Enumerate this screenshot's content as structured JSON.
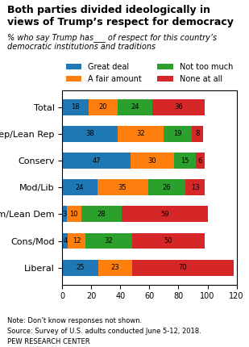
{
  "chart_data": {
    "type": "bar",
    "orientation": "horizontal",
    "stacked": true,
    "data_labels": true,
    "title": "Both parties divided ideologically in\nviews of Trump’s respect for democracy",
    "subtitle": "% who say Trump has___ of respect for this country’s\ndemocratic institutions and traditions",
    "categories": [
      "Total",
      "Rep/Lean Rep",
      "Conserv",
      "Mod/Lib",
      "Dem/Lean Dem",
      "Cons/Mod",
      "Liberal"
    ],
    "series": [
      {
        "name": "Great deal",
        "values": [
          18,
          38,
          47,
          24,
          3,
          4,
          25
        ]
      },
      {
        "name": "A fair amount",
        "values": [
          20,
          32,
          30,
          35,
          10,
          12,
          23
        ]
      },
      {
        "name": "Not too much",
        "values": [
          24,
          19,
          15,
          26,
          28,
          32,
          0
        ]
      },
      {
        "name": "None at all",
        "values": [
          36,
          8,
          6,
          13,
          59,
          50,
          70
        ]
      }
    ],
    "xlim": [
      0,
      120
    ],
    "xticks": [
      0,
      20,
      40,
      60,
      80,
      100,
      120
    ],
    "legend": "lower center",
    "annotations": [
      "Note: Don’t know responses not shown.",
      "Source: Survey of U.S. adults conducted June 5-12, 2018.",
      "PEW RESEARCH CENTER"
    ]
  }
}
